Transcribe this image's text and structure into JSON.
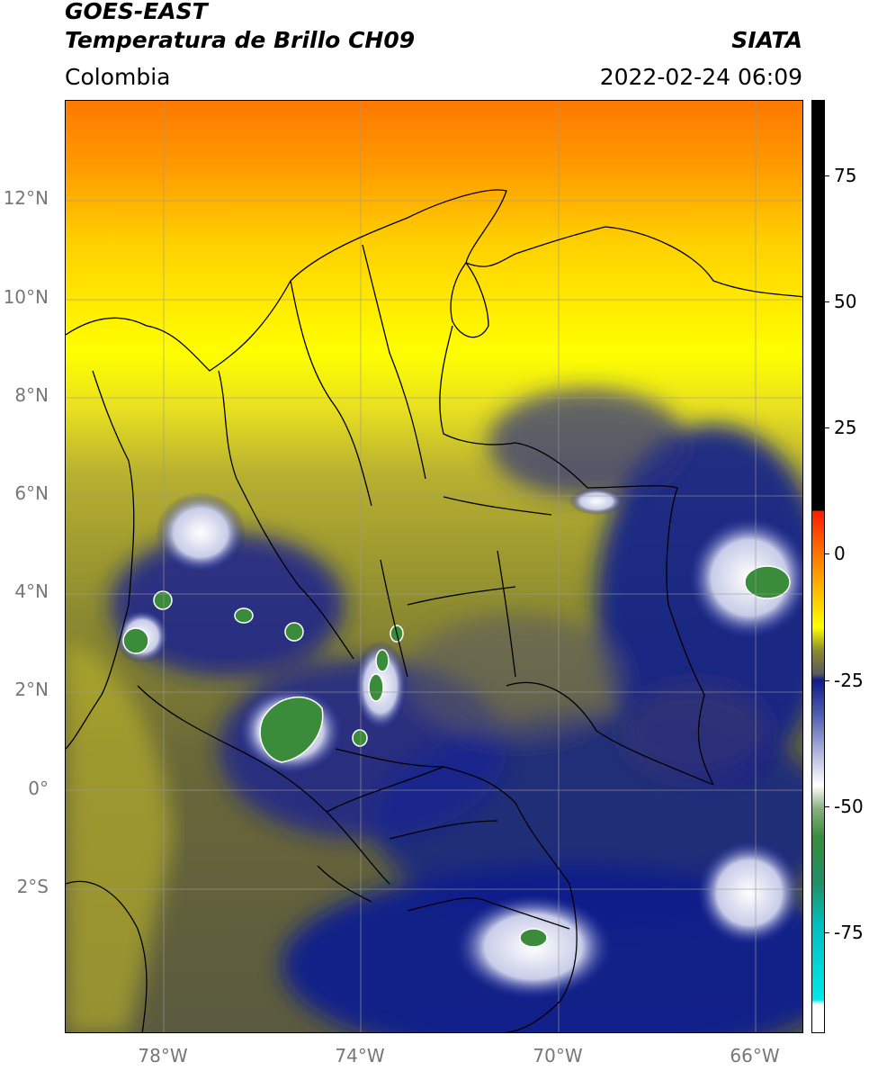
{
  "header": {
    "satellite": "GOES-EAST",
    "product": "Temperatura de Brillo CH09",
    "brand": "SIATA",
    "region": "Colombia",
    "datetime": "2022-02-24 06:09"
  },
  "axes": {
    "lat_labels": [
      "12°N",
      "10°N",
      "8°N",
      "6°N",
      "4°N",
      "2°N",
      "0°",
      "2°S"
    ],
    "lon_labels": [
      "78°W",
      "74°W",
      "70°W",
      "66°W"
    ]
  },
  "colorbar": {
    "tick_labels": [
      "75",
      "50",
      "25",
      "0",
      "-25",
      "-50",
      "-75"
    ],
    "min": -95,
    "max": 90
  },
  "colors": {
    "warm_top": "#ff7a00",
    "yellow": "#ffff00",
    "olive": "#8c8a30",
    "navy": "#101c8c",
    "cloud_white": "#f2f2f2",
    "cloud_green": "#3a8c3a",
    "cbar_red": "#ff2000",
    "cbar_black": "#000000",
    "cbar_cyan": "#00e0e0"
  }
}
